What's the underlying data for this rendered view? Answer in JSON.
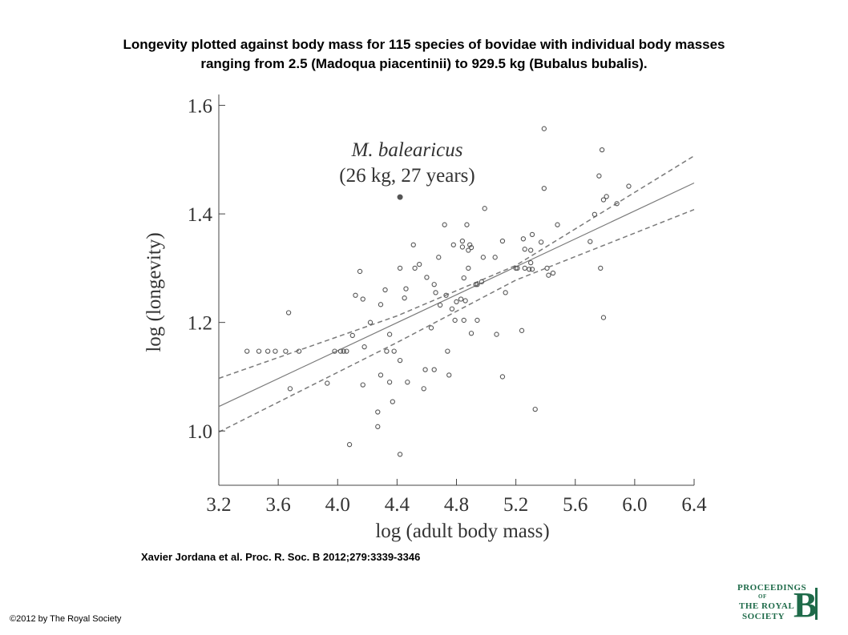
{
  "slide": {
    "title_line1": "Longevity plotted against body mass for 115 species of bovidae with individual body masses",
    "title_line2": "ranging from 2.5 (Madoqua piacentinii) to 929.5 kg (Bubalus bubalis).",
    "citation": "Xavier Jordana et al. Proc. R. Soc. B 2012;279:3339-3346",
    "copyright": "©2012 by The Royal Society"
  },
  "logo": {
    "line1": "PROCEEDINGS",
    "line2": "OF",
    "line3": "THE ROYAL",
    "line4": "SOCIETY",
    "letter": "B"
  },
  "chart_data": {
    "type": "scatter",
    "xlabel": "log (adult body mass)",
    "ylabel": "log (longevity)",
    "xlim": [
      3.2,
      6.4
    ],
    "ylim": [
      0.9,
      1.62
    ],
    "xticks": [
      "3.2",
      "3.6",
      "4.0",
      "4.4",
      "4.8",
      "5.2",
      "5.6",
      "6.0",
      "6.4"
    ],
    "yticks": [
      "1.0",
      "1.2",
      "1.4",
      "1.6"
    ],
    "grid": false,
    "colors": {
      "points": "#555555",
      "regression": "#7a7a7a",
      "confidence": "#7a7a7a"
    },
    "annotation": {
      "line1": "M. balearicus",
      "line2": "(26 kg, 27 years)",
      "point": [
        4.42,
        1.431
      ]
    },
    "regression": {
      "x": [
        3.2,
        6.4
      ],
      "y": [
        1.045,
        1.457
      ]
    },
    "upper_ci": {
      "x": [
        3.2,
        4.4,
        5.2,
        6.4
      ],
      "y": [
        1.097,
        1.212,
        1.305,
        1.507
      ]
    },
    "lower_ci": {
      "x": [
        3.2,
        4.4,
        5.2,
        6.4
      ],
      "y": [
        0.998,
        1.163,
        1.278,
        1.408
      ]
    },
    "points": [
      [
        3.39,
        1.147
      ],
      [
        3.47,
        1.147
      ],
      [
        3.53,
        1.147
      ],
      [
        3.58,
        1.147
      ],
      [
        3.65,
        1.147
      ],
      [
        3.74,
        1.147
      ],
      [
        3.67,
        1.218
      ],
      [
        3.68,
        1.078
      ],
      [
        3.93,
        1.088
      ],
      [
        3.98,
        1.147
      ],
      [
        4.02,
        1.147
      ],
      [
        4.04,
        1.147
      ],
      [
        4.06,
        1.147
      ],
      [
        4.08,
        0.975
      ],
      [
        4.1,
        1.176
      ],
      [
        4.12,
        1.25
      ],
      [
        4.15,
        1.294
      ],
      [
        4.17,
        1.085
      ],
      [
        4.17,
        1.243
      ],
      [
        4.18,
        1.155
      ],
      [
        4.22,
        1.2
      ],
      [
        4.27,
        1.035
      ],
      [
        4.27,
        1.008
      ],
      [
        4.29,
        1.233
      ],
      [
        4.29,
        1.103
      ],
      [
        4.32,
        1.26
      ],
      [
        4.33,
        1.147
      ],
      [
        4.35,
        1.178
      ],
      [
        4.35,
        1.09
      ],
      [
        4.37,
        1.054
      ],
      [
        4.38,
        1.147
      ],
      [
        4.42,
        1.13
      ],
      [
        4.42,
        1.3
      ],
      [
        4.42,
        0.957
      ],
      [
        4.45,
        1.245
      ],
      [
        4.46,
        1.262
      ],
      [
        4.47,
        1.09
      ],
      [
        4.51,
        1.343
      ],
      [
        4.52,
        1.3
      ],
      [
        4.55,
        1.307
      ],
      [
        4.58,
        1.078
      ],
      [
        4.59,
        1.113
      ],
      [
        4.6,
        1.283
      ],
      [
        4.63,
        1.19
      ],
      [
        4.65,
        1.27
      ],
      [
        4.65,
        1.113
      ],
      [
        4.66,
        1.255
      ],
      [
        4.68,
        1.32
      ],
      [
        4.69,
        1.232
      ],
      [
        4.72,
        1.38
      ],
      [
        4.73,
        1.25
      ],
      [
        4.74,
        1.147
      ],
      [
        4.75,
        1.103
      ],
      [
        4.77,
        1.225
      ],
      [
        4.78,
        1.343
      ],
      [
        4.79,
        1.204
      ],
      [
        4.8,
        1.238
      ],
      [
        4.83,
        1.243
      ],
      [
        4.84,
        1.35
      ],
      [
        4.84,
        1.339
      ],
      [
        4.85,
        1.282
      ],
      [
        4.85,
        1.204
      ],
      [
        4.86,
        1.24
      ],
      [
        4.87,
        1.38
      ],
      [
        4.88,
        1.3
      ],
      [
        4.88,
        1.333
      ],
      [
        4.89,
        1.343
      ],
      [
        4.9,
        1.338
      ],
      [
        4.9,
        1.18
      ],
      [
        4.93,
        1.27
      ],
      [
        4.94,
        1.27
      ],
      [
        4.94,
        1.204
      ],
      [
        4.97,
        1.275
      ],
      [
        4.98,
        1.32
      ],
      [
        4.99,
        1.41
      ],
      [
        5.06,
        1.32
      ],
      [
        5.07,
        1.178
      ],
      [
        5.11,
        1.1
      ],
      [
        5.11,
        1.35
      ],
      [
        5.13,
        1.255
      ],
      [
        5.2,
        1.3
      ],
      [
        5.21,
        1.3
      ],
      [
        5.24,
        1.185
      ],
      [
        5.25,
        1.354
      ],
      [
        5.26,
        1.335
      ],
      [
        5.26,
        1.3
      ],
      [
        5.29,
        1.298
      ],
      [
        5.3,
        1.31
      ],
      [
        5.3,
        1.333
      ],
      [
        5.31,
        1.362
      ],
      [
        5.31,
        1.298
      ],
      [
        5.33,
        1.04
      ],
      [
        5.37,
        1.348
      ],
      [
        5.39,
        1.447
      ],
      [
        5.39,
        1.557
      ],
      [
        5.41,
        1.3
      ],
      [
        5.42,
        1.287
      ],
      [
        5.45,
        1.291
      ],
      [
        5.48,
        1.38
      ],
      [
        5.7,
        1.349
      ],
      [
        5.73,
        1.399
      ],
      [
        5.76,
        1.47
      ],
      [
        5.77,
        1.3
      ],
      [
        5.78,
        1.518
      ],
      [
        5.79,
        1.426
      ],
      [
        5.79,
        1.209
      ],
      [
        5.81,
        1.432
      ],
      [
        5.88,
        1.419
      ],
      [
        5.96,
        1.451
      ]
    ]
  }
}
